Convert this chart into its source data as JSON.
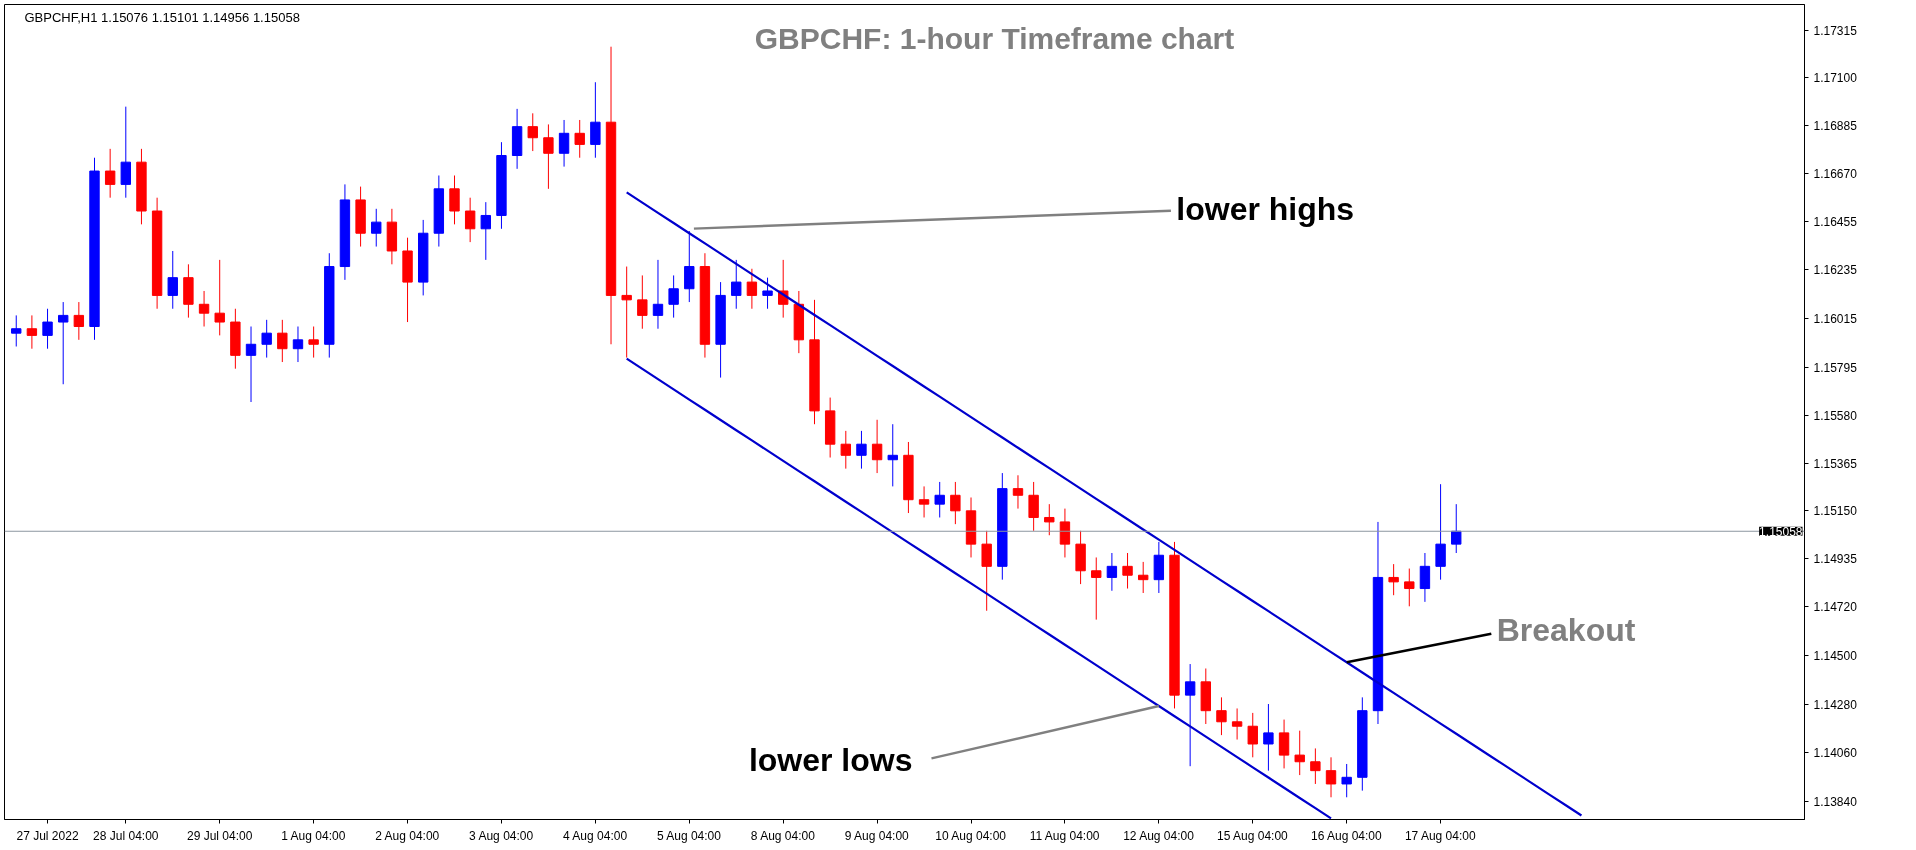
{
  "chart_data": {
    "type": "candlestick",
    "title": "GBPCHF: 1-hour Timeframe chart",
    "subtitle": "GBPCHF,H1  1.15076 1.15101 1.14956 1.15058",
    "categories": [
      null,
      null,
      "27 Jul 2022",
      null,
      null,
      null,
      null,
      "28 Jul 04:00",
      null,
      null,
      null,
      null,
      null,
      "29 Jul 04:00",
      null,
      null,
      null,
      null,
      null,
      "1 Aug 04:00",
      null,
      null,
      null,
      null,
      null,
      "2 Aug 04:00",
      null,
      null,
      null,
      null,
      null,
      "3 Aug 04:00",
      null,
      null,
      null,
      null,
      null,
      "4 Aug 04:00",
      null,
      null,
      null,
      null,
      null,
      "5 Aug 04:00",
      null,
      null,
      null,
      null,
      null,
      "8 Aug 04:00",
      null,
      null,
      null,
      null,
      null,
      "9 Aug 04:00",
      null,
      null,
      null,
      null,
      null,
      "10 Aug 04:00",
      null,
      null,
      null,
      null,
      null,
      "11 Aug 04:00",
      null,
      null,
      null,
      null,
      null,
      "12 Aug 04:00",
      null,
      null,
      null,
      null,
      null,
      "15 Aug 04:00",
      null,
      null,
      null,
      null,
      null,
      "16 Aug 04:00",
      null,
      null,
      null,
      null,
      null,
      "17 Aug 04:00",
      null,
      null,
      null,
      null,
      null,
      null,
      null,
      null,
      null,
      null,
      null,
      null,
      null,
      null,
      null,
      null,
      null,
      null,
      null,
      null,
      null,
      null,
      null
    ],
    "ylim": [
      1.1376,
      1.1743
    ],
    "yticks": [
      1.17315,
      {
        "value": 1.171,
        "label": "1.17100"
      },
      1.16885,
      {
        "value": 1.1667,
        "label": "1.16670"
      },
      1.16455,
      1.16235,
      1.16015,
      1.15795,
      {
        "value": 1.1558,
        "label": "1.15580"
      },
      1.15365,
      {
        "value": 1.1515,
        "label": "1.15150"
      },
      1.14935,
      {
        "value": 1.1472,
        "label": "1.14720"
      },
      {
        "value": 1.145,
        "label": "1.14500"
      },
      {
        "value": 1.1428,
        "label": "1.14280"
      },
      {
        "value": 1.1406,
        "label": "1.14060"
      },
      {
        "value": 1.1384,
        "label": "1.13840"
      }
    ],
    "grid": false,
    "series": [
      {
        "ohlc": [
          [
            1.1595,
            1.1603,
            1.1589,
            1.1597
          ],
          [
            1.1597,
            1.1603,
            1.1588,
            1.1594
          ],
          [
            1.1594,
            1.1606,
            1.1588,
            1.16
          ],
          [
            1.16,
            1.1609,
            1.1572,
            1.1603
          ],
          [
            1.1603,
            1.1609,
            1.1592,
            1.1598
          ],
          [
            1.1598,
            1.1674,
            1.1592,
            1.1668
          ],
          [
            1.1668,
            1.1678,
            1.1656,
            1.1662
          ],
          [
            1.1662,
            1.1697,
            1.1656,
            1.1672
          ],
          [
            1.1672,
            1.1678,
            1.1644,
            1.165
          ],
          [
            1.165,
            1.1656,
            1.1606,
            1.1612
          ],
          [
            1.1612,
            1.1632,
            1.1606,
            1.162
          ],
          [
            1.162,
            1.1626,
            1.1602,
            1.1608
          ],
          [
            1.1608,
            1.1614,
            1.1598,
            1.1604
          ],
          [
            1.1604,
            1.1628,
            1.1594,
            1.16
          ],
          [
            1.16,
            1.1606,
            1.1579,
            1.1585
          ],
          [
            1.1585,
            1.1598,
            1.1564,
            1.159
          ],
          [
            1.159,
            1.1601,
            1.1584,
            1.1595
          ],
          [
            1.1595,
            1.1601,
            1.1582,
            1.1588
          ],
          [
            1.1588,
            1.1598,
            1.1582,
            1.1592
          ],
          [
            1.1592,
            1.1598,
            1.1584,
            1.159
          ],
          [
            1.159,
            1.1631,
            1.1584,
            1.1625
          ],
          [
            1.1625,
            1.1662,
            1.1619,
            1.1655
          ],
          [
            1.1655,
            1.1661,
            1.1634,
            1.164
          ],
          [
            1.164,
            1.1651,
            1.1634,
            1.1645
          ],
          [
            1.1645,
            1.1651,
            1.1626,
            1.1632
          ],
          [
            1.1632,
            1.1638,
            1.16,
            1.1618
          ],
          [
            1.1618,
            1.1646,
            1.1612,
            1.164
          ],
          [
            1.164,
            1.1666,
            1.1634,
            1.166
          ],
          [
            1.166,
            1.1666,
            1.1644,
            1.165
          ],
          [
            1.165,
            1.1656,
            1.1636,
            1.1642
          ],
          [
            1.1642,
            1.1654,
            1.1628,
            1.1648
          ],
          [
            1.1648,
            1.1681,
            1.1642,
            1.1675
          ],
          [
            1.1675,
            1.1696,
            1.1669,
            1.1688
          ],
          [
            1.1688,
            1.1694,
            1.1677,
            1.1683
          ],
          [
            1.1683,
            1.1689,
            1.166,
            1.1676
          ],
          [
            1.1676,
            1.1691,
            1.167,
            1.1685
          ],
          [
            1.1685,
            1.1691,
            1.1674,
            1.168
          ],
          [
            1.168,
            1.1708,
            1.1674,
            1.169
          ],
          [
            1.169,
            1.1724,
            1.159,
            1.1612
          ],
          [
            1.1612,
            1.1625,
            1.1584,
            1.161
          ],
          [
            1.161,
            1.1621,
            1.1597,
            1.1603
          ],
          [
            1.1603,
            1.1628,
            1.1597,
            1.1608
          ],
          [
            1.1608,
            1.1621,
            1.1602,
            1.1615
          ],
          [
            1.1615,
            1.1641,
            1.1609,
            1.1625
          ],
          [
            1.1625,
            1.1631,
            1.1584,
            1.159
          ],
          [
            1.159,
            1.1618,
            1.1575,
            1.1612
          ],
          [
            1.1612,
            1.1628,
            1.1606,
            1.1618
          ],
          [
            1.1618,
            1.1624,
            1.1606,
            1.1612
          ],
          [
            1.1612,
            1.162,
            1.1606,
            1.1614
          ],
          [
            1.1614,
            1.1628,
            1.1602,
            1.1608
          ],
          [
            1.1608,
            1.1614,
            1.1586,
            1.1592
          ],
          [
            1.1592,
            1.161,
            1.1554,
            1.156
          ],
          [
            1.156,
            1.1566,
            1.1539,
            1.1545
          ],
          [
            1.1545,
            1.1551,
            1.1534,
            1.154
          ],
          [
            1.154,
            1.1551,
            1.1534,
            1.1545
          ],
          [
            1.1545,
            1.1556,
            1.1532,
            1.1538
          ],
          [
            1.1538,
            1.1554,
            1.1526,
            1.154
          ],
          [
            1.154,
            1.1546,
            1.1514,
            1.152
          ],
          [
            1.152,
            1.1526,
            1.1512,
            1.1518
          ],
          [
            1.1518,
            1.1528,
            1.1512,
            1.1522
          ],
          [
            1.1522,
            1.1528,
            1.1509,
            1.1515
          ],
          [
            1.1515,
            1.1521,
            1.1494,
            1.15
          ],
          [
            1.15,
            1.1506,
            1.147,
            1.149
          ],
          [
            1.149,
            1.1532,
            1.1484,
            1.1525
          ],
          [
            1.1525,
            1.1531,
            1.1516,
            1.1522
          ],
          [
            1.1522,
            1.1528,
            1.1506,
            1.1512
          ],
          [
            1.1512,
            1.1518,
            1.1504,
            1.151
          ],
          [
            1.151,
            1.1516,
            1.1494,
            1.15
          ],
          [
            1.15,
            1.1506,
            1.1482,
            1.1488
          ],
          [
            1.1488,
            1.1494,
            1.1466,
            1.1485
          ],
          [
            1.1485,
            1.1496,
            1.1479,
            1.149
          ],
          [
            1.149,
            1.1496,
            1.148,
            1.1486
          ],
          [
            1.1486,
            1.1492,
            1.1478,
            1.1484
          ],
          [
            1.1484,
            1.1501,
            1.1478,
            1.1495
          ],
          [
            1.1495,
            1.1501,
            1.1426,
            1.1432
          ],
          [
            1.1432,
            1.1446,
            1.14,
            1.1438
          ],
          [
            1.1438,
            1.1444,
            1.1419,
            1.1425
          ],
          [
            1.1425,
            1.1431,
            1.1414,
            1.142
          ],
          [
            1.142,
            1.1426,
            1.1412,
            1.1418
          ],
          [
            1.1418,
            1.1424,
            1.1404,
            1.141
          ],
          [
            1.141,
            1.1428,
            1.1398,
            1.1415
          ],
          [
            1.1415,
            1.1421,
            1.1399,
            1.1405
          ],
          [
            1.1405,
            1.1416,
            1.1396,
            1.1402
          ],
          [
            1.1402,
            1.1408,
            1.1392,
            1.1398
          ],
          [
            1.1398,
            1.1404,
            1.1386,
            1.1392
          ],
          [
            1.1392,
            1.1401,
            1.1386,
            1.1395
          ],
          [
            1.1395,
            1.1431,
            1.1389,
            1.1425
          ],
          [
            1.1425,
            1.151,
            1.1419,
            1.1485
          ],
          [
            1.1485,
            1.1491,
            1.1477,
            1.1483
          ],
          [
            1.1483,
            1.1489,
            1.1472,
            1.148
          ],
          [
            1.148,
            1.1496,
            1.1474,
            1.149
          ],
          [
            1.149,
            1.1527,
            1.1484,
            1.15
          ],
          [
            1.15,
            1.1518,
            1.1496,
            1.15058
          ],
          null,
          null,
          null,
          null,
          null,
          null,
          null,
          null,
          null,
          null,
          null,
          null,
          null,
          null,
          null,
          null,
          null,
          null,
          null,
          null,
          null,
          null
        ],
        "colors": [
          "#0000ff",
          "#ff0000",
          "#0000ff",
          "#0000ff",
          "#ff0000",
          "#0000ff",
          "#ff0000",
          "#0000ff",
          "#ff0000",
          "#ff0000",
          "#0000ff",
          "#ff0000",
          "#ff0000",
          "#ff0000",
          "#ff0000",
          "#0000ff",
          "#0000ff",
          "#ff0000",
          "#0000ff",
          "#ff0000",
          "#0000ff",
          "#0000ff",
          "#ff0000",
          "#0000ff",
          "#ff0000",
          "#ff0000",
          "#0000ff",
          "#0000ff",
          "#ff0000",
          "#ff0000",
          "#0000ff",
          "#0000ff",
          "#0000ff",
          "#ff0000",
          "#ff0000",
          "#0000ff",
          "#ff0000",
          "#0000ff",
          "#ff0000",
          "#ff0000",
          "#ff0000",
          "#0000ff",
          "#0000ff",
          "#0000ff",
          "#ff0000",
          "#0000ff",
          "#0000ff",
          "#ff0000",
          "#0000ff",
          "#ff0000",
          "#ff0000",
          "#ff0000",
          "#ff0000",
          "#ff0000",
          "#0000ff",
          "#ff0000",
          "#0000ff",
          "#ff0000",
          "#ff0000",
          "#0000ff",
          "#ff0000",
          "#ff0000",
          "#ff0000",
          "#0000ff",
          "#ff0000",
          "#ff0000",
          "#ff0000",
          "#ff0000",
          "#ff0000",
          "#ff0000",
          "#0000ff",
          "#ff0000",
          "#ff0000",
          "#0000ff",
          "#ff0000",
          "#0000ff",
          "#ff0000",
          "#ff0000",
          "#ff0000",
          "#ff0000",
          "#0000ff",
          "#ff0000",
          "#ff0000",
          "#ff0000",
          "#ff0000",
          "#0000ff",
          "#0000ff",
          "#0000ff",
          "#ff0000",
          "#ff0000",
          "#0000ff",
          "#0000ff",
          "#0000ff",
          null,
          null,
          null,
          null,
          null,
          null,
          null,
          null,
          null,
          null,
          null,
          null,
          null,
          null,
          null,
          null,
          null,
          null,
          null,
          null,
          null,
          null
        ]
      },
      {
        "type": "line",
        "color": "#0000cd",
        "values": [
          null,
          null,
          null,
          null,
          null,
          null,
          null,
          null,
          null,
          null,
          null,
          null,
          null,
          null,
          null,
          null,
          null,
          null,
          null,
          null,
          null,
          null,
          null,
          null,
          null,
          null,
          null,
          null,
          null,
          null,
          null,
          null,
          null,
          null,
          null,
          null,
          null,
          null,
          null,
          1.16584,
          1.16538,
          1.16492,
          1.16446,
          1.164,
          1.16354,
          1.16308,
          1.16262,
          1.16216,
          1.1617,
          1.16124,
          1.16078,
          1.16032,
          1.15986,
          1.1594,
          1.15894,
          1.15848,
          1.15802,
          1.15756,
          1.1571,
          1.15664,
          1.15618,
          1.15572,
          1.15526,
          1.1548,
          1.15434,
          1.15388,
          1.15342,
          1.15296,
          1.1525,
          1.15204,
          1.15158,
          1.15112,
          1.15066,
          1.1502,
          1.14974,
          1.14928,
          1.14882,
          1.14836,
          1.1479,
          1.14744,
          1.14698,
          1.14652,
          1.14606,
          1.1456,
          1.14514,
          1.14468,
          1.14422,
          1.14376,
          1.1433,
          1.14284,
          1.14238,
          1.14192,
          1.14146,
          1.141,
          1.14054,
          1.14008,
          1.13962,
          1.13916,
          1.1387,
          1.13824,
          1.13778,
          null,
          null,
          null,
          null,
          null,
          null,
          null,
          null,
          null,
          null,
          null,
          null,
          null,
          null
        ]
      },
      {
        "type": "line",
        "color": "#0000cd",
        "values": [
          null,
          null,
          null,
          null,
          null,
          null,
          null,
          null,
          null,
          null,
          null,
          null,
          null,
          null,
          null,
          null,
          null,
          null,
          null,
          null,
          null,
          null,
          null,
          null,
          null,
          null,
          null,
          null,
          null,
          null,
          null,
          null,
          null,
          null,
          null,
          null,
          null,
          null,
          null,
          1.15835,
          1.15789,
          1.15743,
          1.15697,
          1.15651,
          1.15605,
          1.15559,
          1.15513,
          1.15467,
          1.15421,
          1.15375,
          1.15329,
          1.15283,
          1.15237,
          1.15191,
          1.15145,
          1.15099,
          1.15053,
          1.15007,
          1.14961,
          1.14915,
          1.14869,
          1.14823,
          1.14777,
          1.14731,
          1.14685,
          1.14639,
          1.14593,
          1.14547,
          1.14501,
          1.14455,
          1.14409,
          1.14363,
          1.14317,
          1.14271,
          1.14225,
          1.14179,
          1.14133,
          1.14087,
          1.14041,
          1.13995,
          1.13949,
          1.13903,
          1.13857,
          1.13811,
          1.13765,
          null,
          null,
          null,
          null,
          null,
          null,
          null,
          null,
          null,
          null,
          null,
          null,
          null,
          null,
          null,
          null,
          null,
          null,
          null,
          null,
          null,
          null,
          null,
          null,
          null,
          null,
          null,
          null,
          null,
          null
        ]
      }
    ],
    "ref_lines": [
      {
        "axis": "y",
        "value": 1.15058,
        "label": "1.15058",
        "color": "#8c96a0"
      }
    ],
    "annotations": [
      "lower highs",
      {
        "text": "lower lows",
        "x": "12 Aug 04:00",
        "y": 1.14271
      },
      {
        "text": "Breakout",
        "x": "16 Aug 04:00",
        "y": 1.14468
      }
    ]
  }
}
